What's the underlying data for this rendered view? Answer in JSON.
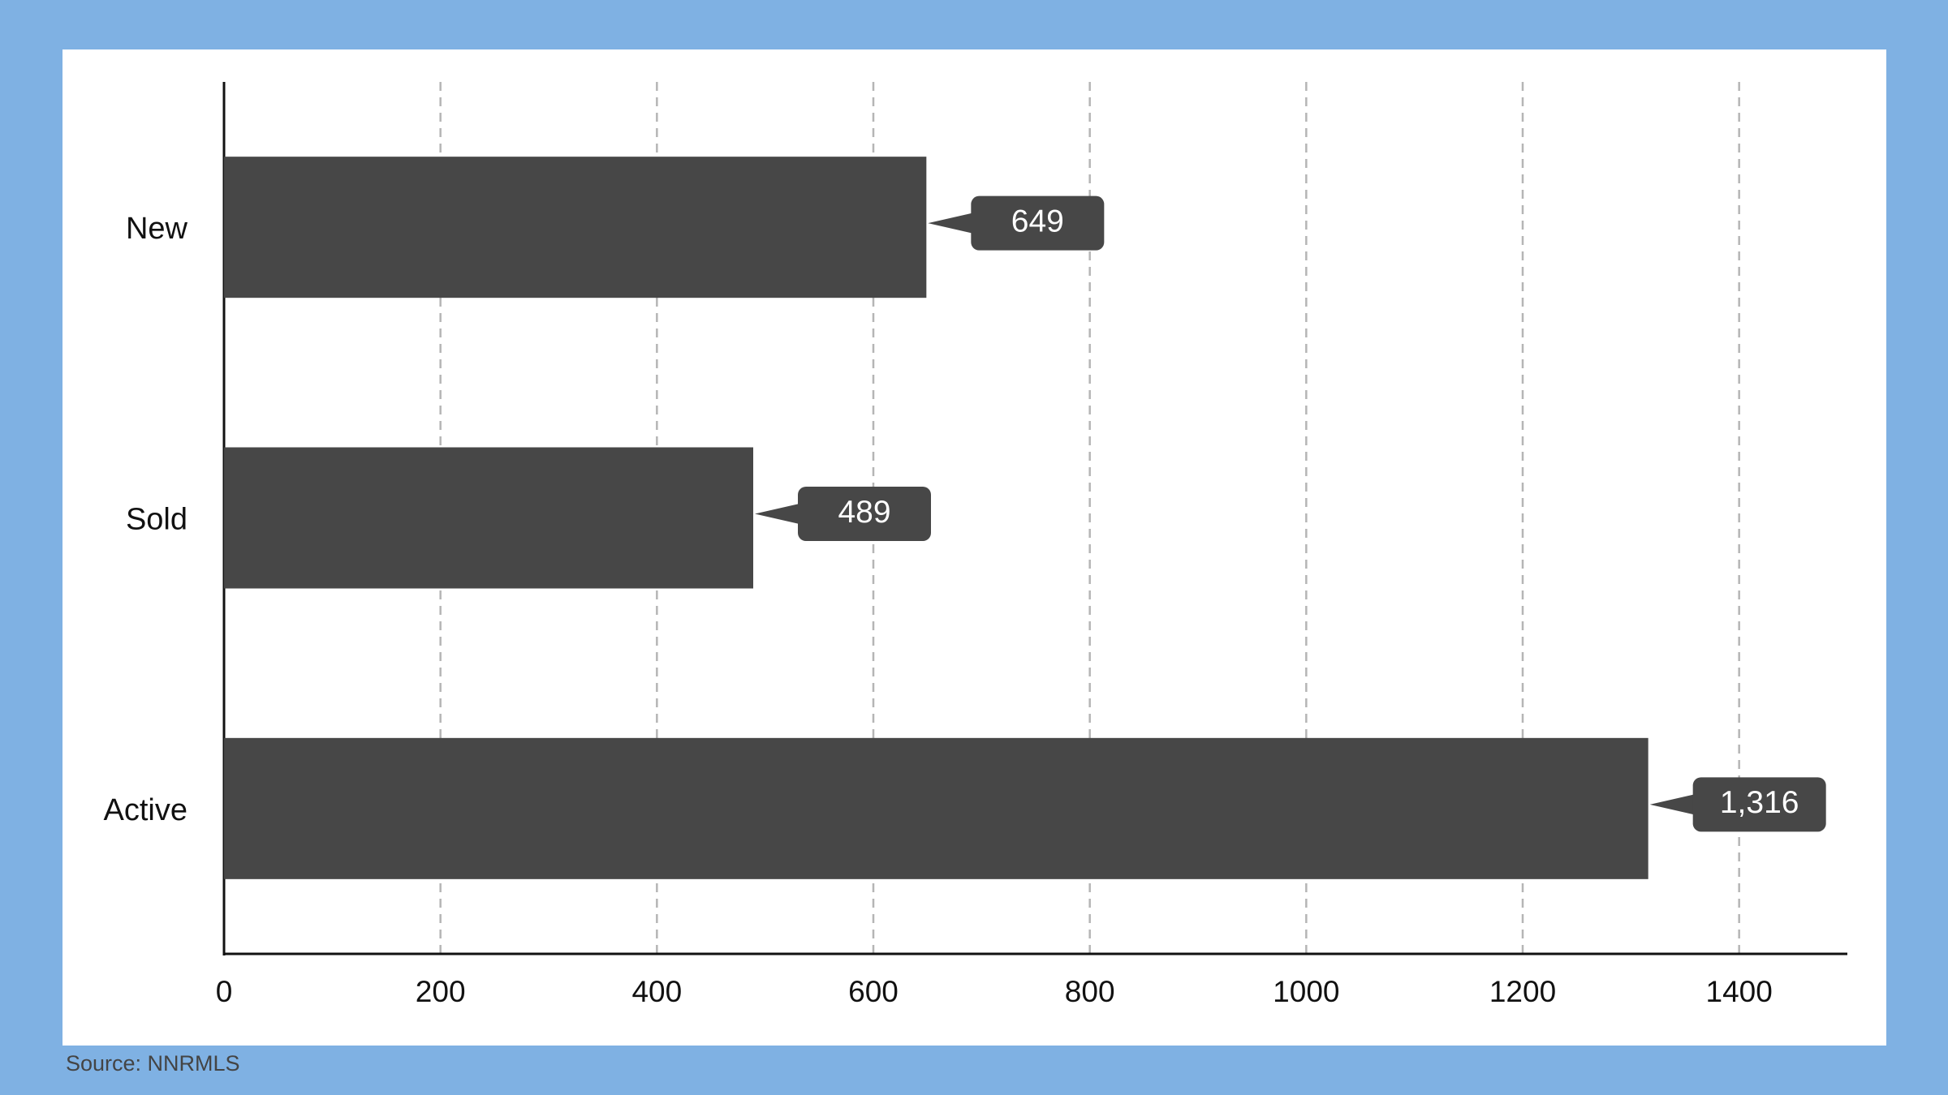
{
  "chart_data": {
    "type": "bar",
    "orientation": "horizontal",
    "categories": [
      "New",
      "Sold",
      "Active"
    ],
    "values": [
      649,
      489,
      1316
    ],
    "value_labels": [
      "649",
      "489",
      "1,316"
    ],
    "color": "#474747",
    "xlim": [
      0,
      1500
    ],
    "xticks": [
      0,
      200,
      400,
      600,
      800,
      1000,
      1200,
      1400
    ],
    "grid": true,
    "source": "Source: NNRMLS"
  }
}
